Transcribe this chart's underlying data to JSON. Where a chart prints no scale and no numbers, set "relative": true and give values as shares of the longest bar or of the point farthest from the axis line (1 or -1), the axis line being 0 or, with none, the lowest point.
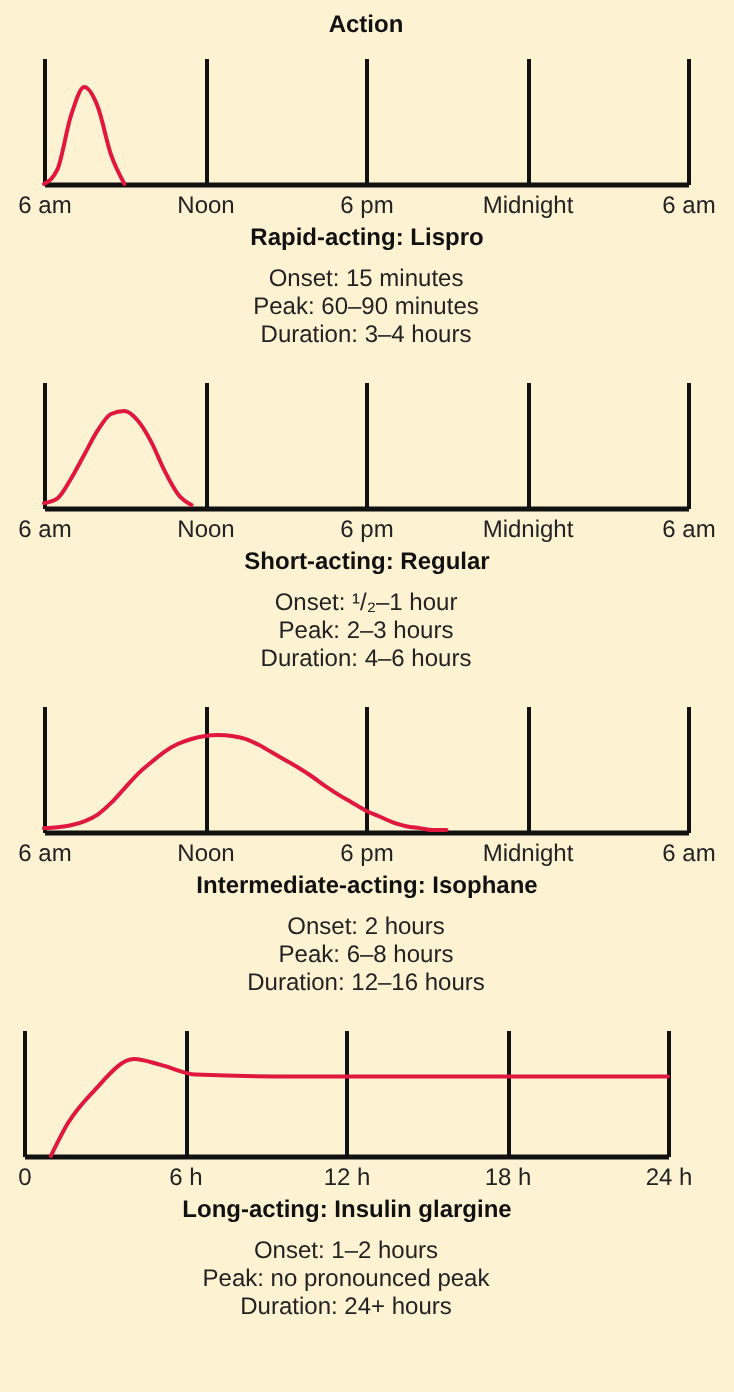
{
  "chart_data": [
    {
      "type": "line",
      "title": "Action",
      "xlabel": "Rapid-acting: Lispro",
      "annotations": [
        "Onset: 15 minutes",
        "Peak: 60–90 minutes",
        "Duration: 3–4 hours"
      ],
      "relative": true,
      "color": "#e0173f",
      "categories": [
        "6 am",
        null,
        null,
        null,
        null,
        null,
        null,
        null,
        null,
        null,
        null,
        null,
        "Noon",
        null,
        null,
        null,
        null,
        null,
        null,
        null,
        null,
        null,
        null,
        null,
        "6 pm",
        null,
        null,
        null,
        null,
        null,
        null,
        null,
        null,
        null,
        null,
        null,
        "Midnight",
        null,
        null,
        null,
        null,
        null,
        null,
        null,
        null,
        null,
        null,
        null,
        "6 am"
      ],
      "values": [
        0,
        0.15,
        0.7,
        1,
        0.8,
        0.3,
        0,
        null,
        null,
        null,
        null,
        null,
        null,
        null,
        null,
        null,
        null,
        null,
        null,
        null,
        null,
        null,
        null,
        null,
        null,
        null,
        null,
        null,
        null,
        null,
        null,
        null,
        null,
        null,
        null,
        null,
        null,
        null,
        null,
        null,
        null,
        null,
        null,
        null,
        null,
        null,
        null,
        null,
        null
      ],
      "grid": "x",
      "tick_labels": "x"
    },
    {
      "type": "line",
      "xlabel": "Short-acting: Regular",
      "annotations": [
        "Onset: ¹/₂–1 hour",
        "Peak: 2–3 hours",
        "Duration: 4–6 hours"
      ],
      "relative": true,
      "color": "#e0173f",
      "categories": [
        "6 am",
        null,
        null,
        null,
        null,
        null,
        null,
        null,
        null,
        null,
        null,
        null,
        "Noon",
        null,
        null,
        null,
        null,
        null,
        null,
        null,
        null,
        null,
        null,
        null,
        "6 pm",
        null,
        null,
        null,
        null,
        null,
        null,
        null,
        null,
        null,
        null,
        null,
        "Midnight",
        null,
        null,
        null,
        null,
        null,
        null,
        null,
        null,
        null,
        null,
        null,
        "6 am"
      ],
      "values": [
        0.05,
        0.1,
        0.3,
        0.55,
        0.8,
        0.97,
        1,
        0.9,
        0.68,
        0.38,
        0.14,
        0.03,
        null,
        null,
        null,
        null,
        null,
        null,
        null,
        null,
        null,
        null,
        null,
        null,
        null,
        null,
        null,
        null,
        null,
        null,
        null,
        null,
        null,
        null,
        null,
        null,
        null,
        null,
        null,
        null,
        null,
        null,
        null,
        null,
        null,
        null,
        null,
        null,
        null
      ],
      "grid": "x",
      "tick_labels": "x"
    },
    {
      "type": "line",
      "xlabel": "Intermediate-acting: Isophane",
      "annotations": [
        "Onset: 2 hours",
        "Peak: 6–8 hours",
        "Duration: 12–16 hours"
      ],
      "relative": true,
      "color": "#e0173f",
      "categories": [
        "6 am",
        null,
        null,
        null,
        null,
        null,
        null,
        null,
        null,
        null,
        null,
        null,
        "Noon",
        null,
        null,
        null,
        null,
        null,
        null,
        null,
        null,
        null,
        null,
        null,
        "6 pm",
        null,
        null,
        null,
        null,
        null,
        null,
        null,
        null,
        null,
        null,
        null,
        "Midnight",
        null,
        null,
        null,
        null,
        null,
        null,
        null,
        null,
        null,
        null,
        null,
        "6 am"
      ],
      "values": [
        0.04,
        0.05,
        0.07,
        0.11,
        0.18,
        0.3,
        0.45,
        0.6,
        0.72,
        0.83,
        0.91,
        0.96,
        0.99,
        1,
        0.99,
        0.96,
        0.9,
        0.82,
        0.74,
        0.66,
        0.57,
        0.47,
        0.38,
        0.3,
        0.22,
        0.16,
        0.1,
        0.06,
        0.04,
        0.02,
        0.02,
        null,
        null,
        null,
        null,
        null,
        null,
        null,
        null,
        null,
        null,
        null,
        null,
        null,
        null,
        null,
        null,
        null,
        null
      ],
      "grid": "x",
      "tick_labels": "x"
    },
    {
      "type": "line",
      "xlabel": "Long-acting: Insulin glargine",
      "annotations": [
        "Onset: 1–2 hours",
        "Peak: no pronounced peak",
        "Duration: 24+ hours"
      ],
      "relative": true,
      "color": "#e0173f",
      "x": [
        1,
        1.64,
        2.6,
        4.1,
        5.1,
        6.4,
        10,
        15,
        20,
        24
      ],
      "values": [
        0,
        0.34,
        0.67,
        1,
        0.94,
        0.84,
        0.82,
        0.82,
        0.82,
        0.82
      ],
      "xlim": [
        0,
        24
      ],
      "xticks": [
        0,
        {
          "value": 6,
          "label": "6 h"
        },
        {
          "value": 12,
          "label": "12 h"
        },
        {
          "value": 18,
          "label": "18 h"
        },
        {
          "value": 24,
          "label": "24 h"
        }
      ],
      "grid": "x",
      "tick_labels": "x"
    }
  ]
}
